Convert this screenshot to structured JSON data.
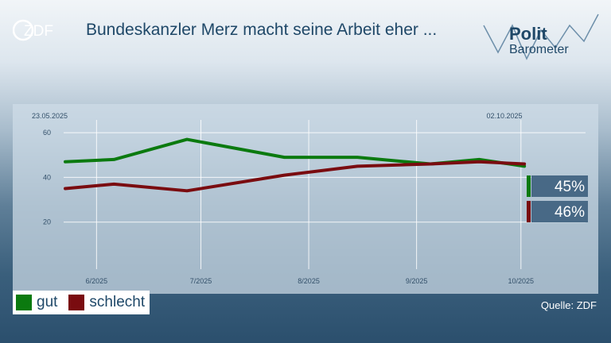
{
  "header": {
    "title": "Bundeskanzler Merz macht seine Arbeit eher ...",
    "brand_logo": "ZDF",
    "program_logo_line1": "Polit",
    "program_logo_line2": "Barometer"
  },
  "source": "Quelle: ZDF",
  "colors": {
    "gut": "#0b7a0f",
    "schlecht": "#7a0c10",
    "title": "#1f4868",
    "value_box": "#486986"
  },
  "chart_data": {
    "type": "line",
    "title": "Bundeskanzler Merz macht seine Arbeit eher ...",
    "x_unit": "date",
    "start_label": "23.05.2025",
    "end_label": "02.10.2025",
    "x_ticks": [
      {
        "date": "2025-06-01",
        "label": "6/2025"
      },
      {
        "date": "2025-07-01",
        "label": "7/2025"
      },
      {
        "date": "2025-08-01",
        "label": "8/2025"
      },
      {
        "date": "2025-09-01",
        "label": "9/2025"
      },
      {
        "date": "2025-10-01",
        "label": "10/2025"
      }
    ],
    "y_ticks": [
      20,
      40,
      60
    ],
    "ylim": [
      0,
      70
    ],
    "xlim": [
      "2025-05-23",
      "2025-10-15"
    ],
    "grid": true,
    "legend": "bottom-left",
    "series": [
      {
        "name": "gut",
        "color": "#0b7a0f",
        "points": [
          {
            "x": "2025-05-23",
            "y": 47
          },
          {
            "x": "2025-06-06",
            "y": 48
          },
          {
            "x": "2025-06-27",
            "y": 57
          },
          {
            "x": "2025-07-25",
            "y": 49
          },
          {
            "x": "2025-08-15",
            "y": 49
          },
          {
            "x": "2025-09-05",
            "y": 46
          },
          {
            "x": "2025-09-19",
            "y": 48
          },
          {
            "x": "2025-10-02",
            "y": 45
          }
        ],
        "last_label": "45%"
      },
      {
        "name": "schlecht",
        "color": "#7a0c10",
        "points": [
          {
            "x": "2025-05-23",
            "y": 35
          },
          {
            "x": "2025-06-06",
            "y": 37
          },
          {
            "x": "2025-06-27",
            "y": 34
          },
          {
            "x": "2025-07-25",
            "y": 41
          },
          {
            "x": "2025-08-15",
            "y": 45
          },
          {
            "x": "2025-09-05",
            "y": 46
          },
          {
            "x": "2025-09-19",
            "y": 47
          },
          {
            "x": "2025-10-02",
            "y": 46
          }
        ],
        "last_label": "46%"
      }
    ]
  }
}
